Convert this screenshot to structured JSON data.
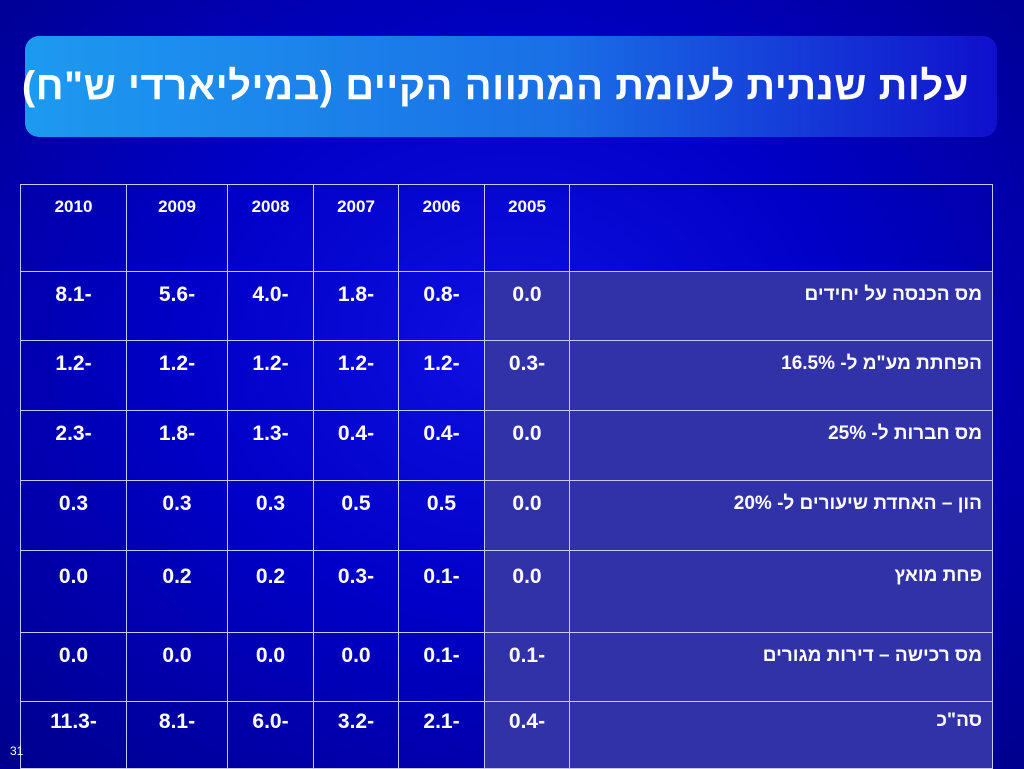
{
  "slide": {
    "title": "עלות שנתית לעומת המתווה הקיים (במיליארדי ש\"ח)",
    "number": "31"
  },
  "table": {
    "columns": [
      "2005",
      "2006",
      "2007",
      "2008",
      "2009",
      "2010"
    ],
    "rows": [
      {
        "label": "מס הכנסה על יחידים",
        "values": [
          "0.0",
          "-0.8",
          "-1.8",
          "-4.0",
          "-5.6",
          "-8.1"
        ]
      },
      {
        "label": "הפחתת מע\"מ ל- 16.5%",
        "values": [
          "-0.3",
          "-1.2",
          "-1.2",
          "-1.2",
          "-1.2",
          "-1.2"
        ]
      },
      {
        "label": "מס חברות ל- 25%",
        "values": [
          "0.0",
          "-0.4",
          "-0.4",
          "-1.3",
          "-1.8",
          "-2.3"
        ]
      },
      {
        "label": "הון – האחדת שיעורים ל- 20%",
        "values": [
          "0.0",
          "0.5",
          "0.5",
          "0.3",
          "0.3",
          "0.3"
        ]
      },
      {
        "label": "פחת מואץ",
        "values": [
          "0.0",
          "-0.1",
          "-0.3",
          "0.2",
          "0.2",
          "0.0"
        ]
      },
      {
        "label": "מס רכישה – דירות מגורים",
        "values": [
          "-0.1",
          "-0.1",
          "0.0",
          "0.0",
          "0.0",
          "0.0"
        ]
      },
      {
        "label": "סה\"כ",
        "values": [
          "-0.4",
          "-2.1",
          "-3.2",
          "-6.0",
          "-8.1",
          "-11.3"
        ]
      }
    ]
  }
}
